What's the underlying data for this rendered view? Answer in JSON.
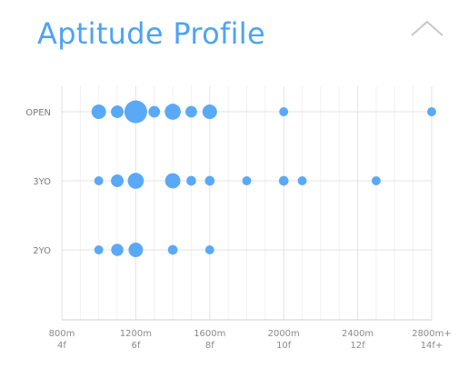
{
  "header": {
    "title": "Aptitude Profile",
    "collapse_icon": "chevron-up-icon"
  },
  "colors": {
    "accent": "#4da3f5",
    "point": "#5aa9f6",
    "grid_minor": "#f1f1f1",
    "grid_major": "#e3e3e3"
  },
  "chart_data": {
    "type": "scatter",
    "title": "Aptitude Profile",
    "xlabel": "",
    "ylabel": "",
    "xlim": [
      800,
      2800
    ],
    "x_ticks": [
      {
        "value": 800,
        "label": "800m",
        "sub": "4f"
      },
      {
        "value": 1200,
        "label": "1200m",
        "sub": "6f"
      },
      {
        "value": 1600,
        "label": "1600m",
        "sub": "8f"
      },
      {
        "value": 2000,
        "label": "2000m",
        "sub": "10f"
      },
      {
        "value": 2400,
        "label": "2400m",
        "sub": "12f"
      },
      {
        "value": 2800,
        "label": "2800m+",
        "sub": "14f+"
      }
    ],
    "categories": [
      "OPEN",
      "3YO",
      "2YO"
    ],
    "grid": true,
    "size_scale": "relative",
    "series": [
      {
        "category": "OPEN",
        "points": [
          {
            "x": 1000,
            "size": 3
          },
          {
            "x": 1100,
            "size": 2
          },
          {
            "x": 1200,
            "size": 10
          },
          {
            "x": 1300,
            "size": 1.5
          },
          {
            "x": 1400,
            "size": 4
          },
          {
            "x": 1500,
            "size": 1.5
          },
          {
            "x": 1600,
            "size": 3
          },
          {
            "x": 2000,
            "size": 0.6
          },
          {
            "x": 2800,
            "size": 0.6
          }
        ]
      },
      {
        "category": "3YO",
        "points": [
          {
            "x": 1000,
            "size": 0.6
          },
          {
            "x": 1100,
            "size": 2
          },
          {
            "x": 1200,
            "size": 4
          },
          {
            "x": 1400,
            "size": 3.5
          },
          {
            "x": 1500,
            "size": 0.8
          },
          {
            "x": 1600,
            "size": 0.8
          },
          {
            "x": 1800,
            "size": 0.6
          },
          {
            "x": 2000,
            "size": 0.8
          },
          {
            "x": 2100,
            "size": 0.6
          },
          {
            "x": 2500,
            "size": 0.6
          }
        ]
      },
      {
        "category": "2YO",
        "points": [
          {
            "x": 1000,
            "size": 0.6
          },
          {
            "x": 1100,
            "size": 1.8
          },
          {
            "x": 1200,
            "size": 3
          },
          {
            "x": 1400,
            "size": 0.8
          },
          {
            "x": 1600,
            "size": 0.6
          }
        ]
      }
    ]
  }
}
